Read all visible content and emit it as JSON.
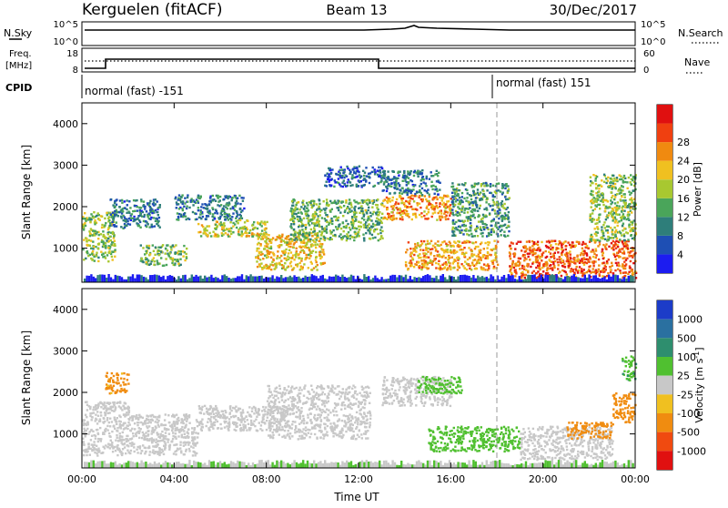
{
  "header": {
    "station": "Kerguelen (fitACF)",
    "beam": "Beam 13",
    "date": "30/Dec/2017"
  },
  "status_panels": {
    "nsky_label": "N.Sky",
    "nsearch_label": "N.Search",
    "freq_label_line1": "Freq.",
    "freq_label_line2": "[MHz]",
    "nave_label": "Nave",
    "cpid_label": "CPID",
    "nsky_ticks": [
      "10^5",
      "10^0"
    ],
    "nsearch_ticks": [
      "10^5",
      "10^0"
    ],
    "freq_ticks": [
      "18",
      "8"
    ],
    "nave_ticks": [
      "60",
      "0"
    ],
    "cpid_segments": [
      {
        "label": "normal (fast) -151",
        "start_hour": 0
      },
      {
        "label": "normal (fast) 151",
        "start_hour": 18
      }
    ]
  },
  "chart_data": [
    {
      "type": "heatmap",
      "title": "",
      "xlabel": "",
      "ylabel": "Slant Range [km]",
      "xlim": [
        0,
        24
      ],
      "ylim": [
        180,
        4500
      ],
      "x_ticks": [
        "00:00",
        "04:00",
        "08:00",
        "12:00",
        "16:00",
        "20:00",
        "00:00"
      ],
      "y_ticks": [
        1000,
        2000,
        3000,
        4000
      ],
      "colorbar_label": "Power [dB]",
      "colorbar_ticks": [
        "4",
        "8",
        "12",
        "16",
        "20",
        "24",
        "28"
      ],
      "colorbar_colors": [
        "#1c1cf0",
        "#1e4fb4",
        "#2e7e7a",
        "#4aa55a",
        "#a8c830",
        "#f0c020",
        "#f08a10",
        "#f04010",
        "#e01010"
      ],
      "colorscale_range": [
        0,
        30
      ],
      "scatter_regions": [
        {
          "t0": 0.0,
          "t1": 1.4,
          "r_min": 700,
          "r_max": 1900,
          "value": 14
        },
        {
          "t0": 1.2,
          "t1": 3.4,
          "r_min": 1500,
          "r_max": 2200,
          "value": 8
        },
        {
          "t0": 2.5,
          "t1": 4.5,
          "r_min": 600,
          "r_max": 1100,
          "value": 13
        },
        {
          "t0": 4.0,
          "t1": 7.0,
          "r_min": 1700,
          "r_max": 2300,
          "value": 8
        },
        {
          "t0": 5.0,
          "t1": 8.0,
          "r_min": 1300,
          "r_max": 1700,
          "value": 16
        },
        {
          "t0": 7.5,
          "t1": 10.5,
          "r_min": 500,
          "r_max": 1400,
          "value": 18
        },
        {
          "t0": 9.0,
          "t1": 13.0,
          "r_min": 1200,
          "r_max": 2200,
          "value": 12
        },
        {
          "t0": 10.5,
          "t1": 13.0,
          "r_min": 2500,
          "r_max": 3000,
          "value": 6
        },
        {
          "t0": 13.0,
          "t1": 16.0,
          "r_min": 1700,
          "r_max": 2300,
          "value": 21
        },
        {
          "t0": 13.0,
          "t1": 15.5,
          "r_min": 2300,
          "r_max": 2900,
          "value": 8
        },
        {
          "t0": 14.0,
          "t1": 18.0,
          "r_min": 500,
          "r_max": 1200,
          "value": 20
        },
        {
          "t0": 16.0,
          "t1": 18.5,
          "r_min": 1300,
          "r_max": 2600,
          "value": 10
        },
        {
          "t0": 18.5,
          "t1": 24.0,
          "r_min": 300,
          "r_max": 1200,
          "value": 24
        },
        {
          "t0": 22.0,
          "t1": 24.0,
          "r_min": 1200,
          "r_max": 2800,
          "value": 14
        }
      ]
    },
    {
      "type": "heatmap",
      "title": "",
      "xlabel": "Time UT",
      "ylabel": "Slant Range [km]",
      "xlim": [
        0,
        24
      ],
      "ylim": [
        180,
        4500
      ],
      "x_ticks": [
        "00:00",
        "04:00",
        "08:00",
        "12:00",
        "16:00",
        "20:00",
        "00:00"
      ],
      "y_ticks": [
        1000,
        2000,
        3000,
        4000
      ],
      "colorbar_label": "Velocity [m s^-1]",
      "colorbar_ticks": [
        "1000",
        "500",
        "100",
        "25",
        "-25",
        "-100",
        "-500",
        "-1000"
      ],
      "colorbar_colors": [
        "#1c3cc8",
        "#2a70a0",
        "#2e8e6e",
        "#50c030",
        "#c8c8c8",
        "#f0c020",
        "#f08c10",
        "#f04a10",
        "#e01010"
      ],
      "scatter_regions": [
        {
          "t0": 0.0,
          "t1": 2.0,
          "r_min": 500,
          "r_max": 1800,
          "value": 0
        },
        {
          "t0": 1.0,
          "t1": 2.0,
          "r_min": 2000,
          "r_max": 2500,
          "value": -150
        },
        {
          "t0": 2.0,
          "t1": 5.0,
          "r_min": 500,
          "r_max": 1500,
          "value": 0
        },
        {
          "t0": 5.0,
          "t1": 9.0,
          "r_min": 1100,
          "r_max": 1700,
          "value": 0
        },
        {
          "t0": 8.0,
          "t1": 12.5,
          "r_min": 900,
          "r_max": 2200,
          "value": 0
        },
        {
          "t0": 13.0,
          "t1": 16.0,
          "r_min": 1700,
          "r_max": 2400,
          "value": 0
        },
        {
          "t0": 14.5,
          "t1": 16.5,
          "r_min": 2000,
          "r_max": 2400,
          "value": 60
        },
        {
          "t0": 15.0,
          "t1": 19.0,
          "r_min": 600,
          "r_max": 1200,
          "value": 70
        },
        {
          "t0": 19.0,
          "t1": 23.0,
          "r_min": 400,
          "r_max": 1200,
          "value": 0
        },
        {
          "t0": 21.0,
          "t1": 23.0,
          "r_min": 900,
          "r_max": 1300,
          "value": -300
        },
        {
          "t0": 23.0,
          "t1": 24.0,
          "r_min": 1300,
          "r_max": 2000,
          "value": -200
        },
        {
          "t0": 23.4,
          "t1": 24.0,
          "r_min": 2300,
          "r_max": 2900,
          "value": 80
        }
      ]
    }
  ]
}
